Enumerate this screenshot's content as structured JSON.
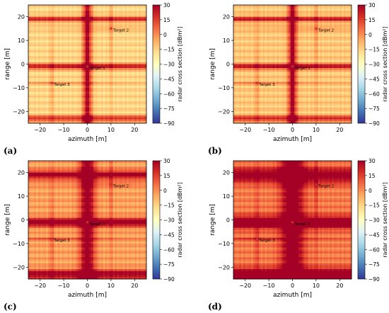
{
  "chart_data": [
    {
      "type": "heatmap",
      "panel_label": "(a)",
      "xlabel": "azimuth [m]",
      "ylabel": "range [m]",
      "colorbar_label": "radar cross section [dBm²]",
      "xlim": [
        -25,
        25
      ],
      "ylim": [
        -25,
        25
      ],
      "x_ticks": [
        -20,
        -10,
        0,
        10,
        20
      ],
      "y_ticks": [
        -20,
        -10,
        0,
        10,
        20
      ],
      "cbar_range": [
        -90,
        30
      ],
      "cbar_ticks": [
        30,
        15,
        0,
        -15,
        -30,
        -45,
        -60,
        -75,
        -90
      ],
      "background_level": 0.62,
      "sidelobe_halfwidth_m": 1.4,
      "targets": [
        {
          "name": "Target 1",
          "azimuth": 0,
          "range": -1
        },
        {
          "name": "Target 2",
          "azimuth": 10,
          "range": 15
        },
        {
          "name": "Target 3",
          "azimuth": -15,
          "range": -8
        }
      ]
    },
    {
      "type": "heatmap",
      "panel_label": "(b)",
      "xlabel": "azimuth [m]",
      "ylabel": "range [m]",
      "colorbar_label": "radar cross section [dBm²]",
      "xlim": [
        -25,
        25
      ],
      "ylim": [
        -25,
        25
      ],
      "x_ticks": [
        -20,
        -10,
        0,
        10,
        20
      ],
      "y_ticks": [
        -20,
        -10,
        0,
        10,
        20
      ],
      "cbar_range": [
        -90,
        30
      ],
      "cbar_ticks": [
        30,
        15,
        0,
        -15,
        -30,
        -45,
        -60,
        -75,
        -90
      ],
      "background_level": 0.65,
      "sidelobe_halfwidth_m": 1.3,
      "targets": [
        {
          "name": "Target 1",
          "azimuth": 0,
          "range": -1
        },
        {
          "name": "Target 2",
          "azimuth": 10,
          "range": 15
        },
        {
          "name": "Target 3",
          "azimuth": -15,
          "range": -8
        }
      ]
    },
    {
      "type": "heatmap",
      "panel_label": "(c)",
      "xlabel": "azimuth [m]",
      "ylabel": "range [m]",
      "colorbar_label": "radar cross section [dBm²]",
      "xlim": [
        -25,
        25
      ],
      "ylim": [
        -25,
        25
      ],
      "x_ticks": [
        -20,
        -10,
        0,
        10,
        20
      ],
      "y_ticks": [
        -20,
        -10,
        0,
        10,
        20
      ],
      "cbar_range": [
        -90,
        30
      ],
      "cbar_ticks": [
        30,
        15,
        0,
        -15,
        -30,
        -45,
        -60,
        -75,
        -90
      ],
      "background_level": 0.72,
      "sidelobe_halfwidth_m": 2.2,
      "targets": [
        {
          "name": "Target 1",
          "azimuth": 0,
          "range": -1
        },
        {
          "name": "Target 2",
          "azimuth": 10,
          "range": 15
        },
        {
          "name": "Target 3",
          "azimuth": -15,
          "range": -8
        }
      ]
    },
    {
      "type": "heatmap",
      "panel_label": "(d)",
      "xlabel": "azimuth [m]",
      "ylabel": "range [m]",
      "colorbar_label": "radar cross section [dBm²]",
      "xlim": [
        -25,
        25
      ],
      "ylim": [
        -25,
        25
      ],
      "x_ticks": [
        -20,
        -10,
        0,
        10,
        20
      ],
      "y_ticks": [
        -20,
        -10,
        0,
        10,
        20
      ],
      "cbar_range": [
        -90,
        30
      ],
      "cbar_ticks": [
        30,
        15,
        0,
        -15,
        -30,
        -45,
        -60,
        -75,
        -90
      ],
      "background_level": 0.78,
      "sidelobe_halfwidth_m": 3.2,
      "targets": [
        {
          "name": "Target 1",
          "azimuth": 0,
          "range": -1
        },
        {
          "name": "Target 2",
          "azimuth": 10,
          "range": 15
        },
        {
          "name": "Target 3",
          "azimuth": -15,
          "range": -8
        }
      ]
    }
  ],
  "colors": {
    "colormap": [
      "#313695",
      "#4575b4",
      "#74add1",
      "#abd9e9",
      "#e0f3f8",
      "#ffffbf",
      "#fee090",
      "#fdae61",
      "#f46d43",
      "#d73027",
      "#a50026"
    ],
    "target_marker": "#c0392b",
    "text": "#000000"
  }
}
